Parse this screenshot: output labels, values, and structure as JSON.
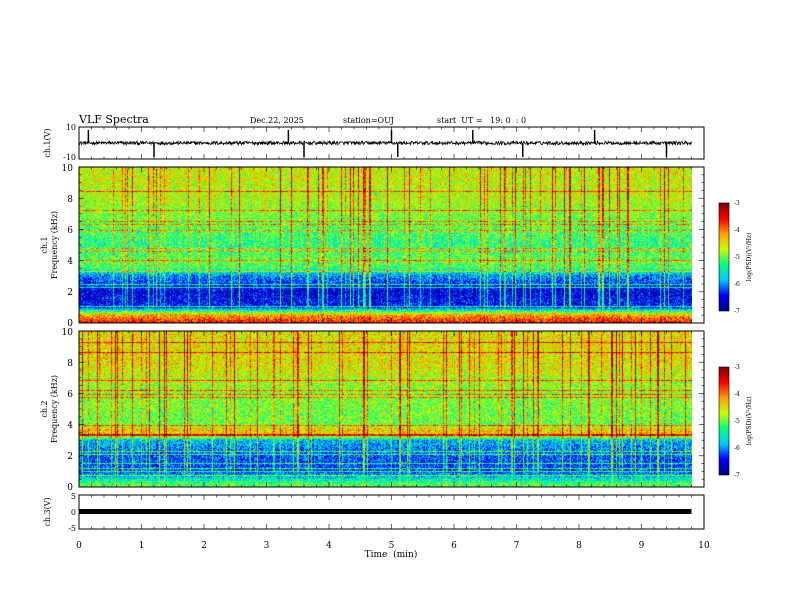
{
  "header": {
    "title": "VLF Spectra",
    "date": "Dec.22, 2025",
    "station": "station=OUJ",
    "start_ut": "start  UT =   19: 0  : 0"
  },
  "chart_data": [
    {
      "type": "line",
      "name": "ch1-waveform",
      "ylabel": "ch.1(V)",
      "ylim": [
        -10,
        10
      ],
      "yticks": [
        "10",
        "-10"
      ],
      "baseline": 0,
      "spikes_min": [
        0.15,
        1.2,
        3.35,
        3.6,
        5.0,
        5.1,
        6.3,
        7.1,
        8.25,
        9.4
      ]
    },
    {
      "type": "heatmap",
      "name": "ch1-spectrogram",
      "ylabel": "ch.1\nFrequency (kHz)",
      "ylabel_line1": "ch.1",
      "ylabel_line2": "Frequency (kHz)",
      "ylim": [
        0,
        10
      ],
      "yticks": [
        "0",
        "2",
        "4",
        "6",
        "8",
        "10"
      ],
      "colorbar": {
        "label": "log(PSD)(V²/Hz)",
        "ticks": [
          "-3",
          "-4",
          "-5",
          "-6",
          "-7"
        ],
        "range": [
          -7,
          -3
        ]
      },
      "band_profile": [
        [
          0,
          -3.6
        ],
        [
          0.5,
          -4.3
        ],
        [
          1,
          -6.4
        ],
        [
          2,
          -6.6
        ],
        [
          3,
          -6.0
        ],
        [
          3.5,
          -5.2
        ],
        [
          4,
          -5.0
        ],
        [
          5,
          -5.3
        ],
        [
          6,
          -5.1
        ],
        [
          8,
          -4.7
        ],
        [
          10,
          -4.6
        ]
      ]
    },
    {
      "type": "heatmap",
      "name": "ch2-spectrogram",
      "ylabel": "ch.2\nFrequency (kHz)",
      "ylabel_line1": "ch.2",
      "ylabel_line2": "Frequency (kHz)",
      "ylim": [
        0,
        10
      ],
      "yticks": [
        "0",
        "2",
        "4",
        "6",
        "8",
        "10"
      ],
      "colorbar": {
        "label": "log(PSD)(V²/Hz)",
        "ticks": [
          "-3",
          "-4",
          "-5",
          "-6",
          "-7"
        ],
        "range": [
          -7,
          -3
        ]
      },
      "band_profile": [
        [
          0,
          -5.0
        ],
        [
          0.5,
          -5.6
        ],
        [
          1,
          -6.3
        ],
        [
          2,
          -6.2
        ],
        [
          3,
          -5.8
        ],
        [
          3.3,
          -4.4
        ],
        [
          3.7,
          -4.4
        ],
        [
          4,
          -5.0
        ],
        [
          6,
          -4.9
        ],
        [
          8,
          -4.5
        ],
        [
          10,
          -4.5
        ]
      ]
    },
    {
      "type": "line",
      "name": "ch3-waveform",
      "ylabel": "ch.3(V)",
      "ylim": [
        -5,
        5
      ],
      "yticks": [
        "5",
        "0",
        "-5"
      ],
      "baseline": 0
    }
  ],
  "xaxis": {
    "label": "Time  (min)",
    "ticks": [
      "0",
      "1",
      "2",
      "3",
      "4",
      "5",
      "6",
      "7",
      "8",
      "9",
      "10"
    ],
    "xlim": [
      0,
      10
    ],
    "data_end": 9.8
  },
  "colors": {
    "cmap": [
      "#000080",
      "#0000ff",
      "#00c8ff",
      "#00ff80",
      "#c8ff00",
      "#ffa000",
      "#ff0000",
      "#800000"
    ]
  }
}
